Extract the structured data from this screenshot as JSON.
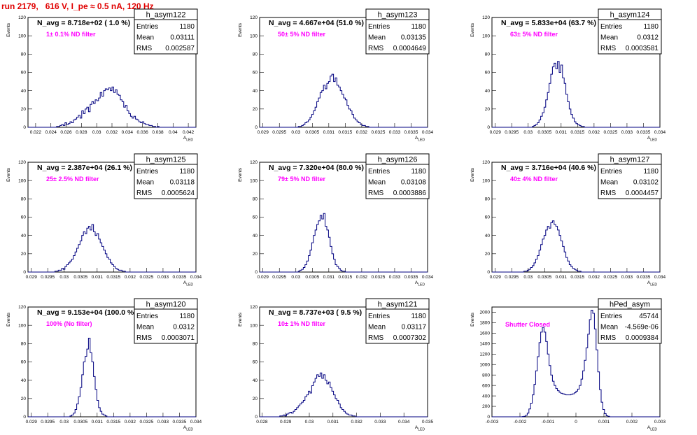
{
  "header": {
    "run_title": "run 2179,   616 V, I_pe ≈ 0.5 nA, 120 Hz"
  },
  "colors": {
    "histogram": "#000080",
    "annotation": "#ff00ff",
    "run_title": "#e00000"
  },
  "stats_labels": [
    "Entries",
    "Mean",
    "RMS"
  ],
  "chart_data": [
    {
      "type": "bar",
      "title": "h_asym122",
      "annotation": "N_avg = 8.718e+02 ( 1.0 %)",
      "filter_label": "1± 0.1% ND filter",
      "stats": {
        "Entries": "1180",
        "Mean": "0.03111",
        "RMS": "0.002587"
      },
      "ylabel": "Events",
      "xlabel": "A_LED",
      "xlim": [
        0.021,
        0.043
      ],
      "ylim": [
        0,
        120
      ],
      "xticks": [
        0.022,
        0.024,
        0.026,
        0.028,
        0.03,
        0.032,
        0.034,
        0.036,
        0.038,
        0.04,
        0.042
      ],
      "xtick_labels": [
        "0.022",
        "0.024",
        "0.026",
        "0.028",
        "0.03",
        "0.032",
        "0.034",
        "0.036",
        "0.038",
        "0.04",
        "0.042"
      ],
      "yticks": [
        0,
        20,
        40,
        60,
        80,
        100,
        120
      ],
      "bin_start": 0.021,
      "bin_width": 0.00022,
      "values": [
        0,
        0,
        0,
        0,
        0,
        0,
        0,
        0,
        0,
        0,
        0,
        0,
        0,
        0,
        0,
        0,
        0,
        1,
        1,
        2,
        3,
        2,
        5,
        3,
        4,
        6,
        5,
        8,
        9,
        11,
        13,
        10,
        18,
        15,
        20,
        22,
        17,
        25,
        28,
        26,
        30,
        29,
        32,
        38,
        34,
        40,
        42,
        41,
        43,
        40,
        44,
        38,
        41,
        36,
        35,
        30,
        28,
        22,
        24,
        18,
        15,
        12,
        10,
        12,
        9,
        8,
        6,
        5,
        6,
        4,
        3,
        3,
        2,
        2,
        1,
        1,
        0,
        1,
        0,
        0,
        0,
        0,
        0,
        0,
        0,
        0,
        0,
        0,
        0,
        0,
        0,
        0,
        0,
        0,
        0,
        0,
        0,
        0,
        0,
        0
      ]
    },
    {
      "type": "bar",
      "title": "h_asym123",
      "annotation": "N_avg = 4.667e+04 (51.0 %)",
      "filter_label": "50± 5% ND filter",
      "stats": {
        "Entries": "1180",
        "Mean": "0.03135",
        "RMS": "0.0004649"
      },
      "ylabel": "Events",
      "xlabel": "A_LED",
      "xlim": [
        0.0289,
        0.034
      ],
      "ylim": [
        0,
        120
      ],
      "xticks": [
        0.029,
        0.0295,
        0.03,
        0.0305,
        0.031,
        0.0315,
        0.032,
        0.0325,
        0.033,
        0.0335,
        0.034
      ],
      "xtick_labels": [
        "0.029",
        "0.0295",
        "0.03",
        "0.0305",
        "0.031",
        "0.0315",
        "0.032",
        "0.0325",
        "0.033",
        "0.0335",
        "0.034"
      ],
      "yticks": [
        0,
        20,
        40,
        60,
        80,
        100,
        120
      ],
      "bin_start": 0.0289,
      "bin_width": 5.1e-05,
      "values": [
        0,
        0,
        0,
        0,
        0,
        0,
        0,
        0,
        0,
        0,
        0,
        0,
        0,
        0,
        0,
        0,
        0,
        0,
        0,
        0,
        0,
        0,
        0,
        1,
        1,
        2,
        3,
        5,
        6,
        8,
        11,
        14,
        18,
        22,
        28,
        32,
        38,
        40,
        46,
        42,
        48,
        50,
        56,
        58,
        50,
        54,
        46,
        44,
        40,
        36,
        32,
        30,
        24,
        20,
        18,
        14,
        10,
        8,
        6,
        5,
        3,
        2,
        2,
        1,
        1,
        0,
        0,
        0,
        0,
        0,
        0,
        0,
        0,
        0,
        0,
        0,
        0,
        0,
        0,
        0,
        0,
        0,
        0,
        0,
        0,
        0,
        0,
        0,
        0,
        0,
        0,
        0,
        0,
        0,
        0,
        0,
        0,
        0,
        0,
        0
      ]
    },
    {
      "type": "bar",
      "title": "h_asym124",
      "annotation": "N_avg = 5.833e+04 (63.7 %)",
      "filter_label": "63± 5% ND filter",
      "stats": {
        "Entries": "1180",
        "Mean": "0.0312",
        "RMS": "0.0003581"
      },
      "ylabel": "Events",
      "xlabel": "A_LED",
      "xlim": [
        0.0289,
        0.034
      ],
      "ylim": [
        0,
        120
      ],
      "xticks": [
        0.029,
        0.0295,
        0.03,
        0.0305,
        0.031,
        0.0315,
        0.032,
        0.0325,
        0.033,
        0.0335,
        0.034
      ],
      "xtick_labels": [
        "0.029",
        "0.0295",
        "0.03",
        "0.0305",
        "0.031",
        "0.0315",
        "0.032",
        "0.0325",
        "0.033",
        "0.0335",
        "0.034"
      ],
      "yticks": [
        0,
        20,
        40,
        60,
        80,
        100,
        120
      ],
      "bin_start": 0.0289,
      "bin_width": 5.1e-05,
      "values": [
        0,
        0,
        0,
        0,
        0,
        0,
        0,
        0,
        0,
        0,
        0,
        0,
        0,
        0,
        0,
        0,
        0,
        0,
        0,
        0,
        0,
        0,
        0,
        0,
        1,
        2,
        3,
        5,
        8,
        12,
        16,
        22,
        30,
        38,
        48,
        58,
        66,
        70,
        64,
        72,
        60,
        68,
        54,
        48,
        36,
        28,
        20,
        14,
        10,
        6,
        4,
        3,
        2,
        1,
        1,
        0,
        0,
        0,
        0,
        0,
        0,
        0,
        0,
        0,
        0,
        0,
        0,
        0,
        0,
        0,
        0,
        0,
        0,
        0,
        0,
        0,
        0,
        0,
        0,
        0,
        0,
        0,
        0,
        0,
        0,
        0,
        0,
        0,
        0,
        0,
        0,
        0,
        0,
        0,
        0,
        0,
        0,
        0,
        0,
        0
      ]
    },
    {
      "type": "bar",
      "title": "h_asym125",
      "annotation": "N_avg = 2.387e+04 (26.1 %)",
      "filter_label": "25± 2.5% ND filter",
      "stats": {
        "Entries": "1180",
        "Mean": "0.03118",
        "RMS": "0.0005624"
      },
      "ylabel": "Events",
      "xlabel": "A_LED",
      "xlim": [
        0.0289,
        0.034
      ],
      "ylim": [
        0,
        120
      ],
      "xticks": [
        0.029,
        0.0295,
        0.03,
        0.0305,
        0.031,
        0.0315,
        0.032,
        0.0325,
        0.033,
        0.0335,
        0.034
      ],
      "xtick_labels": [
        "0.029",
        "0.0295",
        "0.03",
        "0.0305",
        "0.031",
        "0.0315",
        "0.032",
        "0.0325",
        "0.033",
        "0.0335",
        "0.034"
      ],
      "yticks": [
        0,
        20,
        40,
        60,
        80,
        100,
        120
      ],
      "bin_start": 0.0289,
      "bin_width": 5.1e-05,
      "values": [
        0,
        0,
        0,
        0,
        0,
        0,
        0,
        0,
        0,
        0,
        0,
        0,
        0,
        0,
        0,
        0,
        1,
        1,
        2,
        2,
        4,
        3,
        6,
        8,
        10,
        12,
        14,
        18,
        22,
        26,
        30,
        34,
        40,
        44,
        42,
        48,
        50,
        46,
        52,
        44,
        40,
        42,
        36,
        32,
        28,
        24,
        20,
        16,
        14,
        10,
        8,
        6,
        4,
        3,
        2,
        2,
        1,
        1,
        0,
        0,
        0,
        0,
        0,
        0,
        0,
        0,
        0,
        0,
        0,
        0,
        0,
        0,
        0,
        0,
        0,
        0,
        0,
        0,
        0,
        0,
        0,
        0,
        0,
        0,
        0,
        0,
        0,
        0,
        0,
        0,
        0,
        0,
        0,
        0,
        0,
        0,
        0,
        0,
        0,
        0
      ]
    },
    {
      "type": "bar",
      "title": "h_asym126",
      "annotation": "N_avg = 7.320e+04 (80.0 %)",
      "filter_label": "79± 5% ND filter",
      "stats": {
        "Entries": "1180",
        "Mean": "0.03108",
        "RMS": "0.0003886"
      },
      "ylabel": "Events",
      "xlabel": "A_LED",
      "xlim": [
        0.0289,
        0.034
      ],
      "ylim": [
        0,
        120
      ],
      "xticks": [
        0.029,
        0.0295,
        0.03,
        0.0305,
        0.031,
        0.0315,
        0.032,
        0.0325,
        0.033,
        0.0335,
        0.034
      ],
      "xtick_labels": [
        "0.029",
        "0.0295",
        "0.03",
        "0.0305",
        "0.031",
        "0.0315",
        "0.032",
        "0.0325",
        "0.033",
        "0.0335",
        "0.034"
      ],
      "yticks": [
        0,
        20,
        40,
        60,
        80,
        100,
        120
      ],
      "bin_start": 0.0289,
      "bin_width": 5.1e-05,
      "values": [
        0,
        0,
        0,
        0,
        0,
        0,
        0,
        0,
        0,
        0,
        0,
        0,
        0,
        0,
        0,
        0,
        0,
        0,
        0,
        0,
        0,
        0,
        0,
        1,
        2,
        3,
        5,
        8,
        12,
        18,
        24,
        32,
        40,
        46,
        52,
        56,
        62,
        58,
        64,
        50,
        46,
        38,
        28,
        20,
        14,
        8,
        6,
        4,
        2,
        1,
        1,
        0,
        0,
        0,
        0,
        0,
        0,
        0,
        0,
        0,
        0,
        0,
        0,
        0,
        0,
        0,
        0,
        0,
        0,
        0,
        0,
        0,
        0,
        0,
        0,
        0,
        0,
        0,
        0,
        0,
        0,
        0,
        0,
        0,
        0,
        0,
        0,
        0,
        0,
        0,
        0,
        0,
        0,
        0,
        0,
        0,
        0,
        0,
        0,
        0
      ]
    },
    {
      "type": "bar",
      "title": "h_asym127",
      "annotation": "N_avg = 3.716e+04 (40.6 %)",
      "filter_label": "40± 4% ND filter",
      "stats": {
        "Entries": "1180",
        "Mean": "0.03102",
        "RMS": "0.0004457"
      },
      "ylabel": "Events",
      "xlabel": "A_LED",
      "xlim": [
        0.0289,
        0.034
      ],
      "ylim": [
        0,
        120
      ],
      "xticks": [
        0.029,
        0.0295,
        0.03,
        0.0305,
        0.031,
        0.0315,
        0.032,
        0.0325,
        0.033,
        0.0335,
        0.034
      ],
      "xtick_labels": [
        "0.029",
        "0.0295",
        "0.03",
        "0.0305",
        "0.031",
        "0.0315",
        "0.032",
        "0.0325",
        "0.033",
        "0.0335",
        "0.034"
      ],
      "yticks": [
        0,
        20,
        40,
        60,
        80,
        100,
        120
      ],
      "bin_start": 0.0289,
      "bin_width": 5.1e-05,
      "values": [
        0,
        0,
        0,
        0,
        0,
        0,
        0,
        0,
        0,
        0,
        0,
        0,
        0,
        0,
        0,
        0,
        0,
        0,
        0,
        1,
        1,
        2,
        3,
        5,
        7,
        10,
        14,
        18,
        24,
        30,
        36,
        40,
        46,
        50,
        48,
        54,
        56,
        52,
        50,
        46,
        40,
        34,
        28,
        22,
        16,
        12,
        8,
        6,
        4,
        3,
        2,
        1,
        1,
        0,
        0,
        0,
        0,
        0,
        0,
        0,
        0,
        0,
        0,
        0,
        0,
        0,
        0,
        0,
        0,
        0,
        0,
        0,
        0,
        0,
        0,
        0,
        0,
        0,
        0,
        0,
        0,
        0,
        0,
        0,
        0,
        0,
        0,
        0,
        0,
        0,
        0,
        0,
        0,
        0,
        0,
        0,
        0,
        0,
        0,
        0
      ]
    },
    {
      "type": "bar",
      "title": "h_asym120",
      "annotation": "N_avg = 9.153e+04 (100.0 %)",
      "filter_label": "100% (No filter)",
      "stats": {
        "Entries": "1180",
        "Mean": "0.0312",
        "RMS": "0.0003071"
      },
      "ylabel": "Events",
      "xlabel": "A_LED",
      "xlim": [
        0.0289,
        0.034
      ],
      "ylim": [
        0,
        120
      ],
      "xticks": [
        0.029,
        0.0295,
        0.03,
        0.0305,
        0.031,
        0.0315,
        0.032,
        0.0325,
        0.033,
        0.0335,
        0.034
      ],
      "xtick_labels": [
        "0.029",
        "0.0295",
        "0.03",
        "0.0305",
        "0.031",
        "0.0315",
        "0.032",
        "0.0325",
        "0.033",
        "0.0335",
        "0.034"
      ],
      "yticks": [
        0,
        20,
        40,
        60,
        80,
        100,
        120
      ],
      "bin_start": 0.0289,
      "bin_width": 5.1e-05,
      "values": [
        0,
        0,
        0,
        0,
        0,
        0,
        0,
        0,
        0,
        0,
        0,
        0,
        0,
        0,
        0,
        0,
        0,
        0,
        0,
        0,
        0,
        0,
        0,
        0,
        0,
        1,
        2,
        4,
        8,
        14,
        22,
        32,
        46,
        60,
        66,
        74,
        86,
        70,
        60,
        44,
        30,
        18,
        10,
        6,
        3,
        2,
        1,
        0,
        0,
        0,
        0,
        0,
        0,
        0,
        0,
        0,
        0,
        0,
        0,
        0,
        0,
        0,
        0,
        0,
        0,
        0,
        0,
        0,
        0,
        0,
        0,
        0,
        0,
        0,
        0,
        0,
        0,
        0,
        0,
        0,
        0,
        0,
        0,
        0,
        0,
        0,
        0,
        0,
        0,
        0,
        0,
        0,
        0,
        0,
        0,
        0,
        0,
        0,
        0,
        0
      ]
    },
    {
      "type": "bar",
      "title": "h_asym121",
      "annotation": "N_avg = 8.737e+03 ( 9.5 %)",
      "filter_label": "10± 1% ND filter",
      "stats": {
        "Entries": "1180",
        "Mean": "0.03117",
        "RMS": "0.0007302"
      },
      "ylabel": "Events",
      "xlabel": "A_LED",
      "xlim": [
        0.0279,
        0.035
      ],
      "ylim": [
        0,
        120
      ],
      "xticks": [
        0.028,
        0.029,
        0.03,
        0.031,
        0.032,
        0.033,
        0.034,
        0.035
      ],
      "xtick_labels": [
        "0.028",
        "0.029",
        "0.03",
        "0.031",
        "0.032",
        "0.033",
        "0.034",
        "0.035"
      ],
      "yticks": [
        0,
        20,
        40,
        60,
        80,
        100,
        120
      ],
      "bin_start": 0.0279,
      "bin_width": 7.1e-05,
      "values": [
        0,
        0,
        0,
        0,
        0,
        0,
        0,
        0,
        0,
        0,
        0,
        0,
        1,
        1,
        2,
        1,
        3,
        4,
        5,
        4,
        6,
        8,
        10,
        12,
        14,
        16,
        18,
        22,
        24,
        28,
        26,
        34,
        38,
        42,
        46,
        44,
        48,
        42,
        46,
        40,
        36,
        38,
        32,
        28,
        24,
        20,
        18,
        14,
        10,
        8,
        6,
        4,
        3,
        2,
        2,
        1,
        1,
        0,
        0,
        0,
        0,
        0,
        0,
        0,
        0,
        0,
        0,
        0,
        0,
        0,
        0,
        0,
        0,
        0,
        0,
        0,
        0,
        0,
        0,
        0,
        0,
        0,
        0,
        0,
        0,
        0,
        0,
        0,
        0,
        0,
        0,
        0,
        0,
        0,
        0,
        0,
        0,
        0,
        0,
        0
      ]
    },
    {
      "type": "bar",
      "title": "hPed_asym",
      "annotation": "",
      "filter_label": "Shutter Closed",
      "stats": {
        "Entries": "45744",
        "Mean": "-4.569e-06",
        "RMS": "0.0009384"
      },
      "ylabel": "Events",
      "xlabel": "A_LED",
      "xlim": [
        -0.003,
        0.003
      ],
      "ylim": [
        0,
        2100
      ],
      "xticks": [
        -0.003,
        -0.002,
        -0.001,
        0,
        0.001,
        0.002,
        0.003
      ],
      "xtick_labels": [
        "-0.003",
        "-0.002",
        "-0.001",
        "0",
        "0.001",
        "0.002",
        "0.003"
      ],
      "yticks": [
        0,
        200,
        400,
        600,
        800,
        1000,
        1200,
        1400,
        1600,
        1800,
        2000
      ],
      "bin_start": -0.003,
      "bin_width": 6e-05,
      "values": [
        0,
        0,
        0,
        0,
        0,
        0,
        0,
        0,
        0,
        0,
        0,
        0,
        0,
        0,
        0,
        0,
        0,
        0,
        5,
        10,
        30,
        70,
        150,
        260,
        420,
        620,
        880,
        1150,
        1420,
        1620,
        1710,
        1620,
        1440,
        1200,
        980,
        800,
        680,
        600,
        540,
        500,
        470,
        450,
        440,
        430,
        420,
        420,
        420,
        430,
        440,
        460,
        490,
        530,
        600,
        720,
        880,
        1080,
        1320,
        1580,
        1860,
        2040,
        1980,
        1680,
        1280,
        860,
        520,
        280,
        140,
        60,
        20,
        10,
        0,
        0,
        0,
        0,
        0,
        0,
        0,
        0,
        0,
        0,
        0,
        0,
        0,
        0,
        0,
        0,
        0,
        0,
        0,
        0,
        0,
        0,
        0,
        0,
        0,
        0,
        0,
        0,
        0,
        0
      ]
    }
  ]
}
